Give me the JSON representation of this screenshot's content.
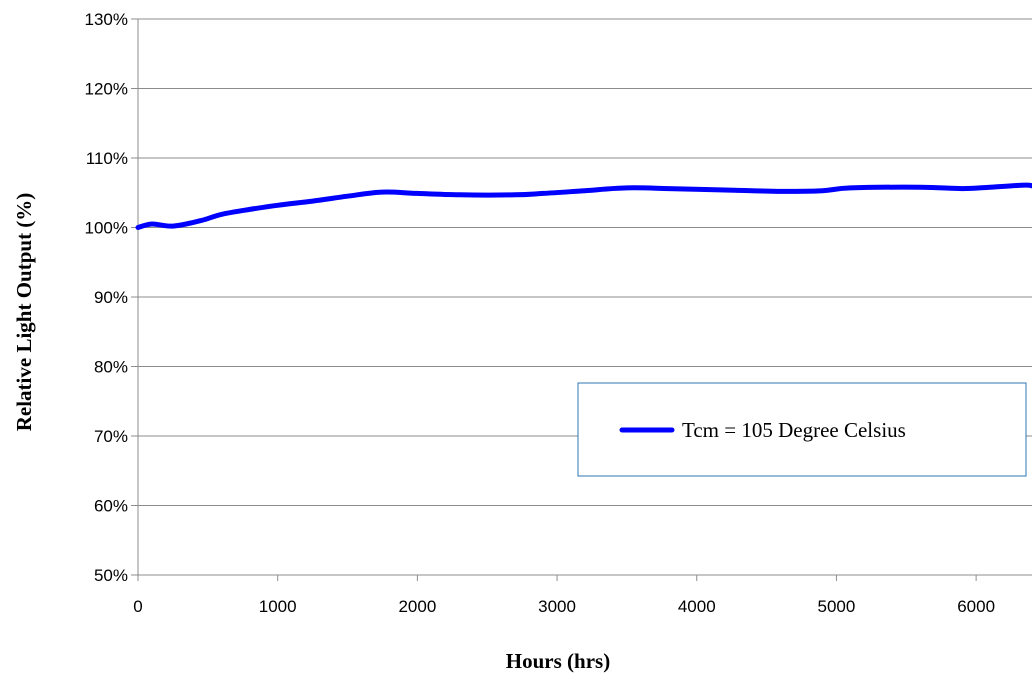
{
  "chart_data": {
    "type": "line",
    "title": "",
    "xlabel": "Hours (hrs)",
    "ylabel": "Relative Light Output (%)",
    "xlim": [
      0,
      6400
    ],
    "ylim": [
      50,
      130
    ],
    "x_ticks": [
      0,
      1000,
      2000,
      3000,
      4000,
      5000,
      6000
    ],
    "x_tick_labels": [
      "0",
      "1000",
      "2000",
      "3000",
      "4000",
      "5000",
      "6000"
    ],
    "y_ticks": [
      50,
      60,
      70,
      80,
      90,
      100,
      110,
      120,
      130
    ],
    "y_tick_labels": [
      "50%",
      "60%",
      "70%",
      "80%",
      "90%",
      "100%",
      "110%",
      "120%",
      "130%"
    ],
    "grid": "horizontal",
    "legend_position": "lower-right",
    "series": [
      {
        "name": "Tcm = 105 Degree Celsius",
        "color": "#0000FF",
        "x": [
          0,
          100,
          250,
          450,
          600,
          800,
          1000,
          1250,
          1500,
          1750,
          2000,
          2300,
          2700,
          2900,
          3200,
          3500,
          3800,
          4200,
          4600,
          4900,
          5100,
          5600,
          5900,
          6100,
          6350,
          6400
        ],
        "y": [
          100.0,
          100.5,
          100.2,
          101.0,
          101.9,
          102.6,
          103.2,
          103.8,
          104.5,
          105.1,
          104.9,
          104.7,
          104.7,
          104.9,
          105.3,
          105.7,
          105.6,
          105.4,
          105.2,
          105.3,
          105.7,
          105.8,
          105.6,
          105.8,
          106.1,
          106.0
        ]
      }
    ]
  }
}
